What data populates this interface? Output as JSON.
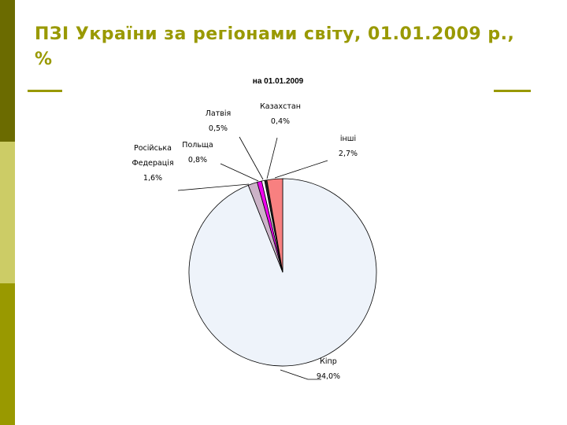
{
  "slide": {
    "title": "ПЗІ України за регіонами світу, 01.01.2009 р., %",
    "accent_color": "#999900",
    "sidebar_colors": [
      "#6b6b00",
      "#cccc66",
      "#999900"
    ]
  },
  "chart_data": {
    "type": "pie",
    "title": "на 01.01.2009",
    "series": [
      {
        "name": "Кіпр",
        "name_lines": [
          "Кіпр"
        ],
        "value": 94.0,
        "label": "94,0%",
        "color": "#eef3fa"
      },
      {
        "name": "Російська Федерація",
        "name_lines": [
          "Російська",
          "Федерація"
        ],
        "value": 1.6,
        "label": "1,6%",
        "color": "#ccb3c8"
      },
      {
        "name": "Польща",
        "name_lines": [
          "Польща"
        ],
        "value": 0.8,
        "label": "0,8%",
        "color": "#ee00ee"
      },
      {
        "name": "Латвія",
        "name_lines": [
          "Латвія"
        ],
        "value": 0.5,
        "label": "0,5%",
        "color": "#ffffff"
      },
      {
        "name": "Казахстан",
        "name_lines": [
          "Казахстан"
        ],
        "value": 0.4,
        "label": "0,4%",
        "color": "#222222"
      },
      {
        "name": "інші",
        "name_lines": [
          "інші"
        ],
        "value": 2.7,
        "label": "2,7%",
        "color": "#f88080"
      }
    ],
    "legend": "none",
    "labels": "outside-with-leader-lines"
  }
}
